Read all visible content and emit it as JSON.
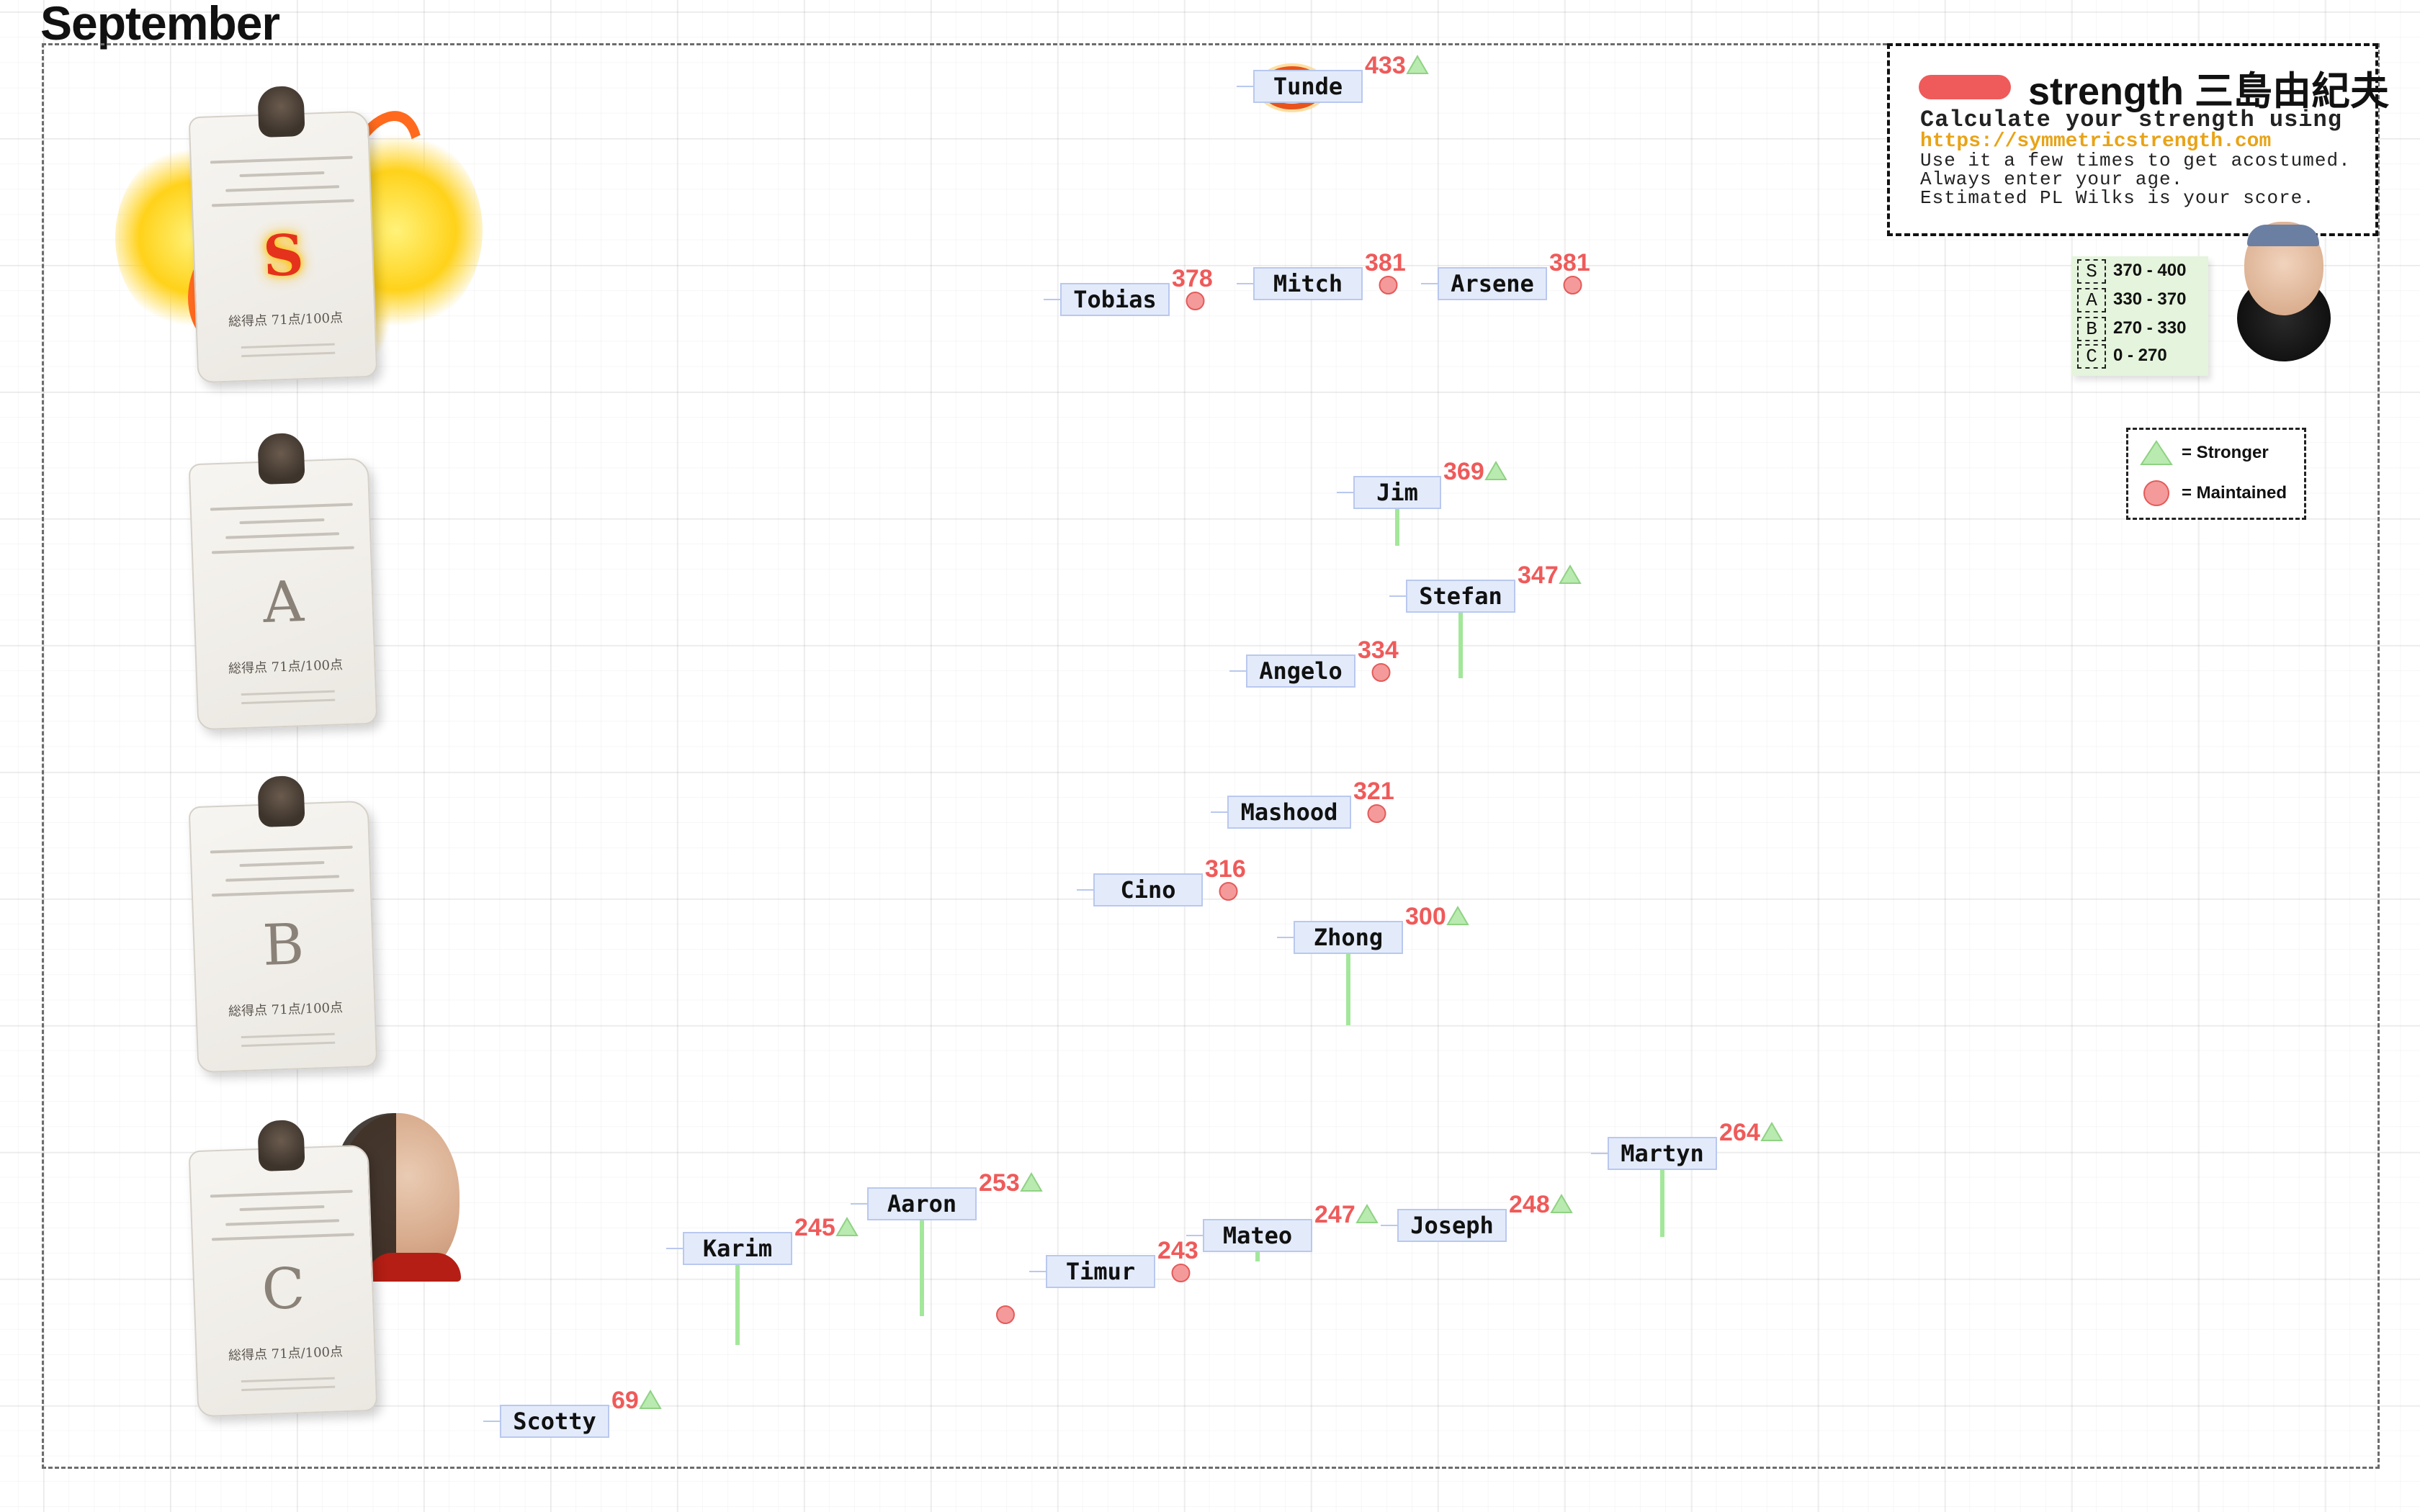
{
  "page": {
    "title": "September"
  },
  "info_box": {
    "title": "strength 三島由紀夫",
    "line1": "Calculate your strength using",
    "link": "https://symmetricstrength.com",
    "line2": "Use it a few times to get acostumed.",
    "line3": "Always enter your age.",
    "line4": "Estimated PL Wilks is your score.",
    "swatch_color": "#ef5a5a"
  },
  "tier_ranges": [
    {
      "tier": "S",
      "range": "370 - 400"
    },
    {
      "tier": "A",
      "range": "330 - 370"
    },
    {
      "tier": "B",
      "range": "270 - 330"
    },
    {
      "tier": "C",
      "range": "0 - 270"
    }
  ],
  "symbol_legend": [
    {
      "symbol": "triangle",
      "label": "= Stronger",
      "color": "#b9eab0"
    },
    {
      "symbol": "circle",
      "label": "= Maintained",
      "color": "#f49a9a"
    }
  ],
  "tier_cards": [
    {
      "grade": "S",
      "score_text": "総得点 71点/100点",
      "icon": "fire-certificate-icon"
    },
    {
      "grade": "A",
      "score_text": "総得点 71点/100点",
      "icon": "certificate-icon"
    },
    {
      "grade": "B",
      "score_text": "総得点 71点/100点",
      "icon": "certificate-icon"
    },
    {
      "grade": "C",
      "score_text": "総得点 71点/100点",
      "icon": "certificate-icon"
    }
  ],
  "chart_data": {
    "type": "scatter",
    "title": "September",
    "ylabel": "",
    "xlabel": "",
    "grid": true,
    "colors": {
      "label_fill": "#e3ebfb",
      "label_border": "#b9c8ee",
      "score": "#ef5a5a",
      "stronger": "#b9eab0",
      "maintained": "#f49a9a",
      "stem": "#a3e79b"
    },
    "points": [
      {
        "name": "Tunde",
        "score": "433",
        "status": "stronger",
        "highlight": true
      },
      {
        "name": "Tobias",
        "score": "378",
        "status": "maintained"
      },
      {
        "name": "Mitch",
        "score": "381",
        "status": "maintained"
      },
      {
        "name": "Arsene",
        "score": "381",
        "status": "maintained"
      },
      {
        "name": "Jim",
        "score": "369",
        "status": "stronger"
      },
      {
        "name": "Stefan",
        "score": "347",
        "status": "stronger"
      },
      {
        "name": "Angelo",
        "score": "334",
        "status": "maintained"
      },
      {
        "name": "Mashood",
        "score": "321",
        "status": "maintained"
      },
      {
        "name": "Cino",
        "score": "316",
        "status": "maintained"
      },
      {
        "name": "Zhong",
        "score": "300",
        "status": "stronger"
      },
      {
        "name": "Martyn",
        "score": "264",
        "status": "stronger"
      },
      {
        "name": "Aaron",
        "score": "253",
        "status": "stronger"
      },
      {
        "name": "Joseph",
        "score": "248",
        "status": "stronger"
      },
      {
        "name": "Mateo",
        "score": "247",
        "status": "stronger"
      },
      {
        "name": "Karim",
        "score": "245",
        "status": "stronger"
      },
      {
        "name": "Timur",
        "score": "243",
        "status": "maintained"
      },
      {
        "name": "Scotty",
        "score": "69",
        "status": "stronger"
      }
    ]
  }
}
